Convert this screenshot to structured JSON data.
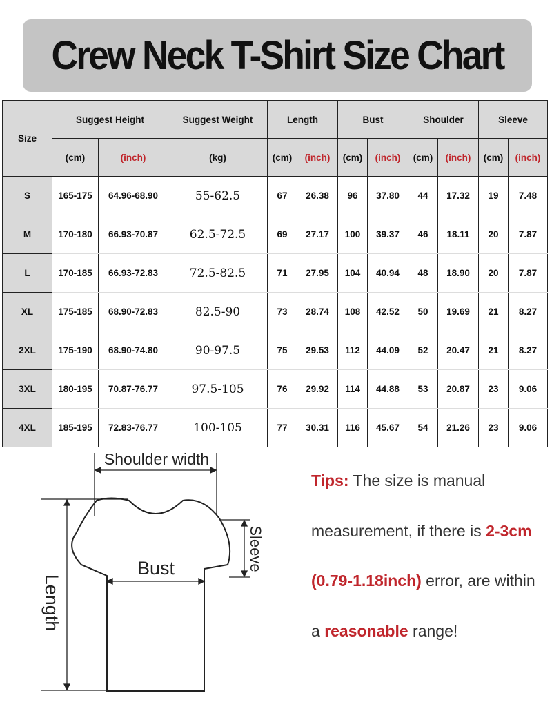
{
  "title": "Crew Neck T-Shirt Size Chart",
  "table": {
    "size_header": "Size",
    "groups": [
      "Suggest Height",
      "Suggest Weight",
      "Length",
      "Bust",
      "Shoulder",
      "Sleeve"
    ],
    "units": [
      "(cm)",
      "(inch)",
      "(kg)",
      "(cm)",
      "(inch)",
      "(cm)",
      "(inch)",
      "(cm)",
      "(inch)",
      "(cm)",
      "(inch)"
    ],
    "rows": [
      [
        "S",
        "165-175",
        "64.96-68.90",
        "55-62.5",
        "67",
        "26.38",
        "96",
        "37.80",
        "44",
        "17.32",
        "19",
        "7.48"
      ],
      [
        "M",
        "170-180",
        "66.93-70.87",
        "62.5-72.5",
        "69",
        "27.17",
        "100",
        "39.37",
        "46",
        "18.11",
        "20",
        "7.87"
      ],
      [
        "L",
        "170-185",
        "66.93-72.83",
        "72.5-82.5",
        "71",
        "27.95",
        "104",
        "40.94",
        "48",
        "18.90",
        "20",
        "7.87"
      ],
      [
        "XL",
        "175-185",
        "68.90-72.83",
        "82.5-90",
        "73",
        "28.74",
        "108",
        "42.52",
        "50",
        "19.69",
        "21",
        "8.27"
      ],
      [
        "2XL",
        "175-190",
        "68.90-74.80",
        "90-97.5",
        "75",
        "29.53",
        "112",
        "44.09",
        "52",
        "20.47",
        "21",
        "8.27"
      ],
      [
        "3XL",
        "180-195",
        "70.87-76.77",
        "97.5-105",
        "76",
        "29.92",
        "114",
        "44.88",
        "53",
        "20.87",
        "23",
        "9.06"
      ],
      [
        "4XL",
        "185-195",
        "72.83-76.77",
        "100-105",
        "77",
        "30.31",
        "116",
        "45.67",
        "54",
        "21.26",
        "23",
        "9.06"
      ]
    ]
  },
  "diagram": {
    "shoulder": "Shoulder width",
    "bust": "Bust",
    "length": "Length",
    "sleeve": "Sleeve"
  },
  "tips": {
    "label": "Tips:",
    "t1": " The size is manual measurement, if there is ",
    "t2": "2-3cm (0.79-1.18inch)",
    "t3": " error, are within a ",
    "t4": "reasonable",
    "t5": " range!"
  },
  "colors": {
    "accent": "#c0262c",
    "header_bg": "#d9d9d9",
    "banner_bg": "#c4c4c4"
  }
}
